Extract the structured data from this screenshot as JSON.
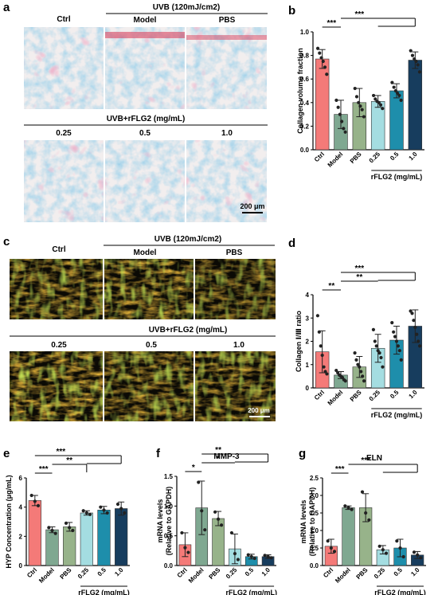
{
  "panels": {
    "a": {
      "label": "a",
      "headers": {
        "ctrl": "Ctrl",
        "uvb": "UVB (120mJ/cm2)",
        "model": "Model",
        "pbs": "PBS",
        "rflg2": "UVB+rFLG2 (mg/mL)",
        "d1": "0.25",
        "d2": "0.5",
        "d3": "1.0"
      },
      "scale": "200 μm"
    },
    "c": {
      "label": "c",
      "headers": {
        "ctrl": "Ctrl",
        "uvb": "UVB (120mJ/cm2)",
        "model": "Model",
        "pbs": "PBS",
        "rflg2": "UVB+rFLG2 (mg/mL)",
        "d1": "0.25",
        "d2": "0.5",
        "d3": "1.0"
      },
      "scale": "200 μm"
    }
  },
  "colors": {
    "Ctrl": "#f47a78",
    "Model": "#7fa891",
    "PBS": "#97b38a",
    "0.25": "#a4dde1",
    "0.5": "#1e8eab",
    "1.0": "#173d5e"
  },
  "chart_data": [
    {
      "id": "b",
      "label": "b",
      "type": "bar",
      "title": "",
      "ylabel": "Collagen volume fraction",
      "xlabel": "rFLG2 (mg/mL)",
      "categories": [
        "Ctrl",
        "Model",
        "PBS",
        "0.25",
        "0.5",
        "1.0"
      ],
      "values": [
        0.77,
        0.3,
        0.4,
        0.41,
        0.5,
        0.76
      ],
      "errors": [
        0.08,
        0.12,
        0.12,
        0.05,
        0.06,
        0.07
      ],
      "points": [
        [
          0.86,
          0.82,
          0.78,
          0.75,
          0.7,
          0.64
        ],
        [
          0.42,
          0.36,
          0.3,
          0.24,
          0.18,
          0.15
        ],
        [
          0.52,
          0.45,
          0.4,
          0.37,
          0.34,
          0.28
        ],
        [
          0.46,
          0.43,
          0.41,
          0.4,
          0.38,
          0.35
        ],
        [
          0.57,
          0.53,
          0.5,
          0.48,
          0.46,
          0.42
        ],
        [
          0.84,
          0.8,
          0.77,
          0.75,
          0.72,
          0.66
        ]
      ],
      "ylim": [
        0,
        1.0
      ],
      "yticks": [
        "0.0",
        "0.2",
        "0.4",
        "0.6",
        "0.8",
        "1.0"
      ],
      "sig": [
        {
          "from": 0,
          "to": 1,
          "text": "***"
        },
        {
          "from": 1,
          "to": 5,
          "text": "***",
          "bracket_from": 3
        }
      ]
    },
    {
      "id": "d",
      "label": "d",
      "type": "bar",
      "title": "",
      "ylabel": "Collagen Ⅰ/Ⅲ ratio",
      "xlabel": "rFLG2 (mg/mL)",
      "categories": [
        "Ctrl",
        "Model",
        "PBS",
        "0.25",
        "0.5",
        "1.0"
      ],
      "values": [
        1.55,
        0.55,
        0.9,
        1.7,
        2.05,
        2.65
      ],
      "errors": [
        0.9,
        0.15,
        0.45,
        0.6,
        0.6,
        0.7
      ],
      "points": [
        [
          3.1,
          2.4,
          1.8,
          1.4,
          0.9,
          0.7,
          0.6
        ],
        [
          0.75,
          0.65,
          0.55,
          0.5,
          0.45,
          0.35,
          0.3
        ],
        [
          1.5,
          1.2,
          1.0,
          0.9,
          0.7,
          0.5,
          0.3
        ],
        [
          2.5,
          2.0,
          1.8,
          1.6,
          1.5,
          1.3,
          0.9
        ],
        [
          2.8,
          2.4,
          2.2,
          2.0,
          1.8,
          1.6,
          1.2
        ],
        [
          3.3,
          3.2,
          2.9,
          2.6,
          2.3,
          2.0,
          1.8
        ]
      ],
      "ylim": [
        0,
        4
      ],
      "yticks": [
        "0",
        "1",
        "2",
        "3",
        "4"
      ],
      "sig": [
        {
          "from": 0,
          "to": 1,
          "text": "**"
        },
        {
          "from": 1,
          "to": 3,
          "text": "**"
        },
        {
          "from": 1,
          "to": 5,
          "text": "***",
          "bracket_from": 3
        }
      ]
    },
    {
      "id": "e",
      "label": "e",
      "type": "bar",
      "title": "",
      "ylabel": "HYP Concentration (μg/mL)",
      "xlabel": "rFLG2 (mg/mL)",
      "categories": [
        "Ctrl",
        "Model",
        "PBS",
        "0.25",
        "0.5",
        "1.0"
      ],
      "values": [
        4.45,
        2.45,
        2.65,
        3.6,
        3.8,
        3.9
      ],
      "errors": [
        0.35,
        0.2,
        0.3,
        0.15,
        0.25,
        0.45
      ],
      "points": [
        [
          4.8,
          4.4,
          4.1
        ],
        [
          2.6,
          2.4,
          2.2
        ],
        [
          2.9,
          2.6,
          2.4
        ],
        [
          3.75,
          3.6,
          3.5
        ],
        [
          4.0,
          3.8,
          3.6
        ],
        [
          4.2,
          3.9,
          3.6
        ]
      ],
      "ylim": [
        0,
        6
      ],
      "yticks": [
        "0",
        "2",
        "4",
        "6"
      ],
      "sig": [
        {
          "from": 0,
          "to": 1,
          "text": "***"
        },
        {
          "from": 1,
          "to": 3,
          "text": "**",
          "bracket_from": 3
        },
        {
          "from": 0,
          "to": 5,
          "text": "***",
          "bracket_from": 3
        }
      ]
    },
    {
      "id": "f",
      "label": "f",
      "type": "bar",
      "title": "MMP-3",
      "ylabel": "mRNA levels (Relative to GAPDH)",
      "xlabel": "rFLG2 (mg/mL)",
      "categories": [
        "Ctrl",
        "Model",
        "PBS",
        "0.25",
        "0.5",
        "1.0"
      ],
      "values": [
        0.35,
        0.97,
        0.79,
        0.28,
        0.15,
        0.15
      ],
      "errors": [
        0.2,
        0.45,
        0.12,
        0.25,
        0.04,
        0.03
      ],
      "points": [
        [
          0.55,
          0.3,
          0.22
        ],
        [
          1.4,
          0.92,
          0.6
        ],
        [
          0.9,
          0.78,
          0.68
        ],
        [
          0.55,
          0.2,
          0.1
        ],
        [
          0.18,
          0.15,
          0.12
        ],
        [
          0.17,
          0.15,
          0.13
        ]
      ],
      "ylim": [
        0,
        1.5
      ],
      "yticks": [
        "0.0",
        "0.5",
        "1.0",
        "1.5"
      ],
      "sig": [
        {
          "from": 0,
          "to": 1,
          "text": "*"
        },
        {
          "from": 1,
          "to": 3,
          "text": "*"
        },
        {
          "from": 1,
          "to": 5,
          "text": "**",
          "bracket_from": 3
        }
      ]
    },
    {
      "id": "g",
      "label": "g",
      "type": "bar",
      "title": "ELN",
      "ylabel": "mRNA levels (Relative to GAPDH)",
      "xlabel": "rFLG2 (mg/mL)",
      "categories": [
        "Ctrl",
        "Model",
        "PBS",
        "0.25",
        "0.5",
        "1.0"
      ],
      "values": [
        0.55,
        1.65,
        1.65,
        0.45,
        0.5,
        0.3
      ],
      "errors": [
        0.2,
        0.05,
        0.4,
        0.12,
        0.25,
        0.1
      ],
      "points": [
        [
          0.7,
          0.5,
          0.4
        ],
        [
          1.7,
          1.65,
          1.6
        ],
        [
          2.1,
          1.5,
          1.3
        ],
        [
          0.55,
          0.45,
          0.35
        ],
        [
          0.7,
          0.5,
          0.25
        ],
        [
          0.38,
          0.3,
          0.22
        ]
      ],
      "ylim": [
        0,
        2.5
      ],
      "yticks": [
        "0.0",
        "0.5",
        "1.0",
        "1.5",
        "2.0",
        "2.5"
      ],
      "sig": [
        {
          "from": 0,
          "to": 1,
          "text": "***"
        },
        {
          "from": 1,
          "to": 5,
          "text": "***",
          "bracket_from": 3
        }
      ]
    }
  ]
}
